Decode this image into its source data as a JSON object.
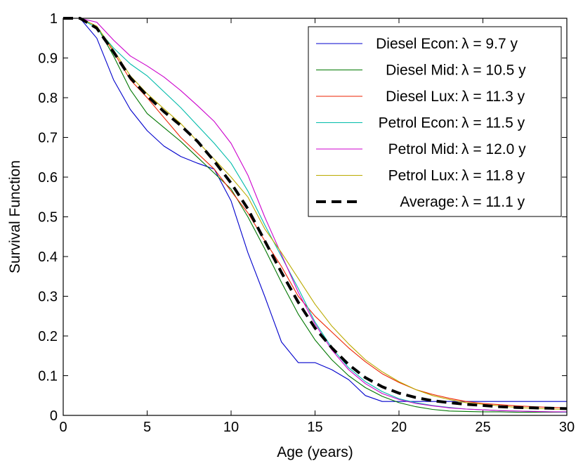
{
  "chart_data": {
    "type": "line",
    "title": "",
    "xlabel": "Age (years)",
    "ylabel": "Survival Function",
    "xlim": [
      0,
      30
    ],
    "ylim": [
      0,
      1
    ],
    "xticks": [
      0,
      5,
      10,
      15,
      20,
      25,
      30
    ],
    "yticks": [
      0,
      0.1,
      0.2,
      0.3,
      0.4,
      0.5,
      0.6,
      0.7,
      0.8,
      0.9,
      1
    ],
    "grid": false,
    "legend_position": "top-right",
    "x": [
      0,
      1,
      2,
      3,
      4,
      5,
      6,
      7,
      8,
      9,
      10,
      11,
      12,
      13,
      14,
      15,
      16,
      17,
      18,
      19,
      20,
      21,
      22,
      23,
      24,
      25,
      26,
      27,
      28,
      29,
      30
    ],
    "series": [
      {
        "name": "Diesel Econ",
        "lambda_text": "λ = 9.7 y",
        "color": "#0000cc",
        "dash": false,
        "values": [
          1,
          1,
          0.95,
          0.845,
          0.77,
          0.717,
          0.678,
          0.652,
          0.635,
          0.62,
          0.54,
          0.41,
          0.3,
          0.185,
          0.133,
          0.133,
          0.115,
          0.09,
          0.05,
          0.035,
          0.035,
          0.035,
          0.035,
          0.035,
          0.035,
          0.035,
          0.035,
          0.035,
          0.035,
          0.035,
          0.035
        ]
      },
      {
        "name": "Diesel Mid",
        "lambda_text": "λ = 10.5 y",
        "color": "#007700",
        "dash": false,
        "values": [
          1,
          1,
          0.98,
          0.905,
          0.82,
          0.76,
          0.725,
          0.69,
          0.65,
          0.61,
          0.57,
          0.5,
          0.42,
          0.335,
          0.255,
          0.19,
          0.14,
          0.1,
          0.07,
          0.048,
          0.032,
          0.022,
          0.015,
          0.011,
          0.01,
          0.009,
          0.009,
          0.008,
          0.008,
          0.008,
          0.008
        ]
      },
      {
        "name": "Diesel Lux",
        "lambda_text": "λ = 11.3 y",
        "color": "#ee2200",
        "dash": false,
        "values": [
          1,
          1,
          0.98,
          0.915,
          0.845,
          0.8,
          0.75,
          0.7,
          0.66,
          0.62,
          0.565,
          0.51,
          0.44,
          0.375,
          0.3,
          0.25,
          0.21,
          0.17,
          0.135,
          0.105,
          0.083,
          0.065,
          0.053,
          0.043,
          0.035,
          0.03,
          0.027,
          0.024,
          0.022,
          0.02,
          0.019
        ]
      },
      {
        "name": "Petrol Econ",
        "lambda_text": "λ = 11.5 y",
        "color": "#00bbaa",
        "dash": false,
        "values": [
          1,
          1,
          0.975,
          0.925,
          0.885,
          0.855,
          0.815,
          0.775,
          0.73,
          0.685,
          0.635,
          0.565,
          0.48,
          0.4,
          0.32,
          0.235,
          0.17,
          0.12,
          0.085,
          0.06,
          0.042,
          0.032,
          0.025,
          0.02,
          0.016,
          0.014,
          0.012,
          0.011,
          0.01,
          0.009,
          0.008
        ]
      },
      {
        "name": "Petrol Mid",
        "lambda_text": "λ = 12.0 y",
        "color": "#cc00cc",
        "dash": false,
        "values": [
          1,
          1,
          0.99,
          0.945,
          0.905,
          0.88,
          0.852,
          0.818,
          0.78,
          0.74,
          0.685,
          0.605,
          0.5,
          0.405,
          0.31,
          0.23,
          0.165,
          0.115,
          0.08,
          0.055,
          0.04,
          0.03,
          0.024,
          0.019,
          0.016,
          0.014,
          0.012,
          0.011,
          0.01,
          0.009,
          0.009
        ]
      },
      {
        "name": "Petrol Lux",
        "lambda_text": "λ = 11.8 y",
        "color": "#bbaa00",
        "dash": false,
        "values": [
          1,
          1,
          0.98,
          0.92,
          0.855,
          0.81,
          0.772,
          0.735,
          0.69,
          0.645,
          0.6,
          0.55,
          0.47,
          0.41,
          0.345,
          0.28,
          0.225,
          0.18,
          0.14,
          0.11,
          0.085,
          0.065,
          0.05,
          0.04,
          0.032,
          0.028,
          0.024,
          0.02,
          0.018,
          0.016,
          0.015
        ]
      },
      {
        "name": "Average",
        "lambda_text": "λ = 11.1 y",
        "color": "#000000",
        "dash": true,
        "values": [
          1,
          1,
          0.975,
          0.915,
          0.85,
          0.805,
          0.765,
          0.73,
          0.69,
          0.64,
          0.585,
          0.52,
          0.44,
          0.36,
          0.285,
          0.22,
          0.17,
          0.128,
          0.095,
          0.072,
          0.056,
          0.045,
          0.037,
          0.032,
          0.028,
          0.025,
          0.022,
          0.02,
          0.019,
          0.018,
          0.017
        ]
      }
    ]
  }
}
